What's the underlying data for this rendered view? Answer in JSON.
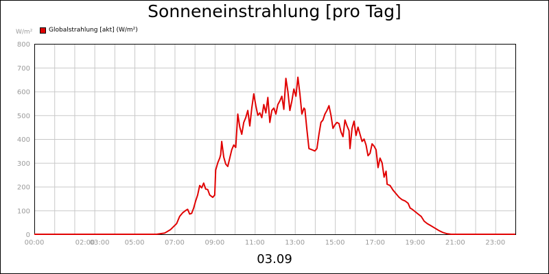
{
  "chart_data": {
    "type": "line",
    "title": "Sonneneinstrahlung [pro Tag]",
    "ylabel": "W/m²",
    "xlabel": "03.09",
    "x_unit": "hours",
    "xlim": [
      0,
      24
    ],
    "ylim": [
      0,
      800
    ],
    "grid": true,
    "legend_position": "top-left",
    "y_ticks": [
      0,
      100,
      200,
      300,
      400,
      500,
      600,
      700,
      800
    ],
    "x_ticks": [
      {
        "x": 0,
        "label": "00:00"
      },
      {
        "x": 2,
        "label": "02:00"
      },
      {
        "x": 3,
        "label": "03:00"
      },
      {
        "x": 5,
        "label": "05:00"
      },
      {
        "x": 7,
        "label": "07:00"
      },
      {
        "x": 9,
        "label": "09:00"
      },
      {
        "x": 11,
        "label": "11:00"
      },
      {
        "x": 13,
        "label": "13:00"
      },
      {
        "x": 15,
        "label": "15:00"
      },
      {
        "x": 17,
        "label": "17:00"
      },
      {
        "x": 19,
        "label": "19:00"
      },
      {
        "x": 21,
        "label": "21:00"
      },
      {
        "x": 23,
        "label": "23:00"
      }
    ],
    "series": [
      {
        "name": "Globalstrahlung [akt] (W/m²)",
        "color": "#e00000",
        "points": [
          [
            0,
            0
          ],
          [
            6.1,
            0
          ],
          [
            6.5,
            5
          ],
          [
            6.8,
            20
          ],
          [
            7.1,
            45
          ],
          [
            7.25,
            75
          ],
          [
            7.4,
            90
          ],
          [
            7.55,
            100
          ],
          [
            7.65,
            105
          ],
          [
            7.75,
            85
          ],
          [
            7.85,
            88
          ],
          [
            7.95,
            110
          ],
          [
            8.05,
            140
          ],
          [
            8.15,
            165
          ],
          [
            8.25,
            205
          ],
          [
            8.35,
            195
          ],
          [
            8.45,
            215
          ],
          [
            8.55,
            190
          ],
          [
            8.65,
            188
          ],
          [
            8.75,
            165
          ],
          [
            8.9,
            155
          ],
          [
            9.0,
            165
          ],
          [
            9.05,
            270
          ],
          [
            9.15,
            300
          ],
          [
            9.25,
            320
          ],
          [
            9.3,
            335
          ],
          [
            9.35,
            390
          ],
          [
            9.45,
            325
          ],
          [
            9.55,
            295
          ],
          [
            9.65,
            285
          ],
          [
            9.75,
            320
          ],
          [
            9.85,
            355
          ],
          [
            9.95,
            375
          ],
          [
            10.05,
            365
          ],
          [
            10.15,
            505
          ],
          [
            10.25,
            450
          ],
          [
            10.35,
            420
          ],
          [
            10.45,
            470
          ],
          [
            10.55,
            490
          ],
          [
            10.65,
            520
          ],
          [
            10.75,
            455
          ],
          [
            10.85,
            530
          ],
          [
            10.95,
            590
          ],
          [
            11.05,
            540
          ],
          [
            11.15,
            500
          ],
          [
            11.25,
            510
          ],
          [
            11.35,
            490
          ],
          [
            11.45,
            545
          ],
          [
            11.55,
            510
          ],
          [
            11.65,
            575
          ],
          [
            11.75,
            470
          ],
          [
            11.85,
            520
          ],
          [
            11.95,
            530
          ],
          [
            12.05,
            505
          ],
          [
            12.15,
            545
          ],
          [
            12.25,
            560
          ],
          [
            12.35,
            580
          ],
          [
            12.45,
            525
          ],
          [
            12.55,
            655
          ],
          [
            12.65,
            600
          ],
          [
            12.75,
            520
          ],
          [
            12.85,
            560
          ],
          [
            12.95,
            610
          ],
          [
            13.05,
            580
          ],
          [
            13.15,
            660
          ],
          [
            13.25,
            590
          ],
          [
            13.35,
            505
          ],
          [
            13.45,
            530
          ],
          [
            13.5,
            525
          ],
          [
            13.6,
            440
          ],
          [
            13.7,
            360
          ],
          [
            13.85,
            355
          ],
          [
            14.0,
            350
          ],
          [
            14.1,
            360
          ],
          [
            14.2,
            420
          ],
          [
            14.3,
            470
          ],
          [
            14.4,
            480
          ],
          [
            14.5,
            505
          ],
          [
            14.6,
            520
          ],
          [
            14.7,
            540
          ],
          [
            14.8,
            500
          ],
          [
            14.9,
            445
          ],
          [
            15.0,
            460
          ],
          [
            15.1,
            470
          ],
          [
            15.2,
            465
          ],
          [
            15.3,
            430
          ],
          [
            15.4,
            410
          ],
          [
            15.5,
            480
          ],
          [
            15.6,
            455
          ],
          [
            15.7,
            435
          ],
          [
            15.75,
            360
          ],
          [
            15.85,
            445
          ],
          [
            15.95,
            475
          ],
          [
            16.05,
            415
          ],
          [
            16.15,
            450
          ],
          [
            16.25,
            420
          ],
          [
            16.35,
            390
          ],
          [
            16.45,
            400
          ],
          [
            16.55,
            375
          ],
          [
            16.65,
            330
          ],
          [
            16.75,
            340
          ],
          [
            16.85,
            380
          ],
          [
            16.95,
            370
          ],
          [
            17.05,
            355
          ],
          [
            17.15,
            280
          ],
          [
            17.25,
            320
          ],
          [
            17.35,
            300
          ],
          [
            17.45,
            240
          ],
          [
            17.55,
            265
          ],
          [
            17.6,
            210
          ],
          [
            17.75,
            205
          ],
          [
            17.9,
            185
          ],
          [
            18.05,
            170
          ],
          [
            18.2,
            155
          ],
          [
            18.35,
            145
          ],
          [
            18.5,
            140
          ],
          [
            18.65,
            130
          ],
          [
            18.75,
            110
          ],
          [
            18.85,
            105
          ],
          [
            19.0,
            95
          ],
          [
            19.15,
            85
          ],
          [
            19.3,
            75
          ],
          [
            19.45,
            55
          ],
          [
            19.6,
            45
          ],
          [
            19.8,
            35
          ],
          [
            20.0,
            25
          ],
          [
            20.2,
            15
          ],
          [
            20.4,
            7
          ],
          [
            20.6,
            2
          ],
          [
            20.8,
            0
          ],
          [
            24,
            0
          ]
        ]
      }
    ]
  }
}
